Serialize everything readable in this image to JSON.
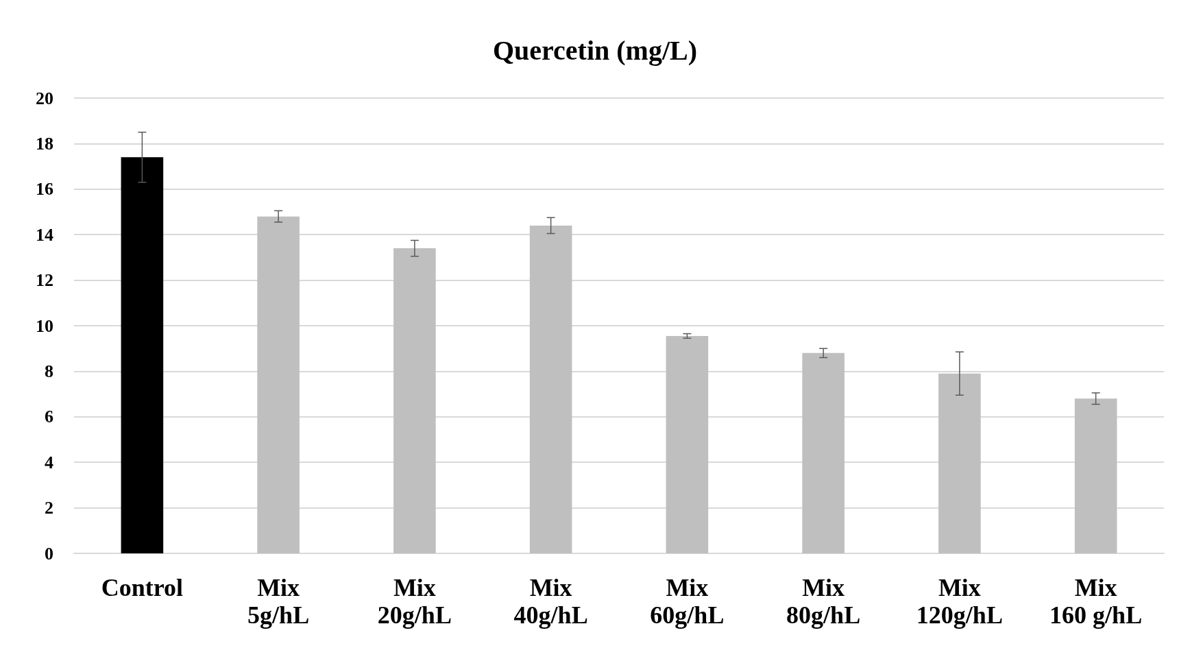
{
  "chart_data": {
    "type": "bar",
    "title": "Quercetin (mg/L)",
    "categories": [
      "Control",
      "Mix\n5g/hL",
      "Mix\n20g/hL",
      "Mix\n40g/hL",
      "Mix\n60g/hL",
      "Mix\n80g/hL",
      "Mix\n120g/hL",
      "Mix\n160 g/hL"
    ],
    "values": [
      17.4,
      14.8,
      13.4,
      14.4,
      9.55,
      8.8,
      7.9,
      6.8
    ],
    "errors": [
      1.1,
      0.25,
      0.35,
      0.35,
      0.1,
      0.2,
      0.95,
      0.25
    ],
    "colors": [
      "#000000",
      "#bfbfbf",
      "#bfbfbf",
      "#bfbfbf",
      "#bfbfbf",
      "#bfbfbf",
      "#bfbfbf",
      "#bfbfbf"
    ],
    "ylim": [
      0,
      20
    ],
    "yticks": [
      0,
      2,
      4,
      6,
      8,
      10,
      12,
      14,
      16,
      18,
      20
    ],
    "grid": "y"
  }
}
